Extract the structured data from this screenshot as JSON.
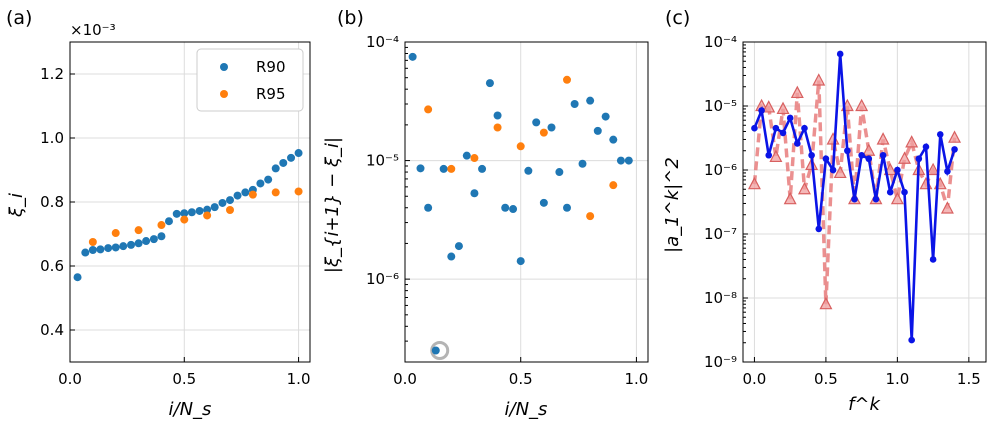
{
  "colors": {
    "r90": "#1f77b4",
    "r95": "#ff7f0e",
    "blue_line": "#0a14e6",
    "red_line": "#e87c7c",
    "highlight": "#b4b4b4"
  },
  "chart_data": [
    {
      "panel": "(a)",
      "type": "scatter",
      "title": "",
      "xlabel": "i/N_s",
      "ylabel": "ξ_i",
      "offset_text": "×10⁻³",
      "xlim": [
        0,
        1.05
      ],
      "ylim": [
        0.3,
        1.3
      ],
      "xticks": [
        0.0,
        0.5,
        1.0
      ],
      "xtick_labels": [
        "0.0",
        "0.5",
        "1.0"
      ],
      "yticks": [
        0.4,
        0.6,
        0.8,
        1.0,
        1.2
      ],
      "ytick_labels": [
        "0.4",
        "0.6",
        "0.8",
        "1.0",
        "1.2"
      ],
      "grid": true,
      "legend": "top-right",
      "series": [
        {
          "name": "R90",
          "x": [
            0.033,
            0.067,
            0.1,
            0.133,
            0.167,
            0.2,
            0.233,
            0.267,
            0.3,
            0.333,
            0.367,
            0.4,
            0.433,
            0.467,
            0.5,
            0.533,
            0.567,
            0.6,
            0.633,
            0.667,
            0.7,
            0.733,
            0.767,
            0.8,
            0.833,
            0.867,
            0.9,
            0.933,
            0.967,
            1.0
          ],
          "y": [
            0.565,
            0.642,
            0.65,
            0.652,
            0.656,
            0.658,
            0.662,
            0.666,
            0.671,
            0.678,
            0.684,
            0.693,
            0.74,
            0.763,
            0.765,
            0.768,
            0.772,
            0.776,
            0.784,
            0.797,
            0.806,
            0.82,
            0.83,
            0.838,
            0.858,
            0.87,
            0.905,
            0.922,
            0.938,
            0.953
          ]
        },
        {
          "name": "R95",
          "x": [
            0.1,
            0.2,
            0.3,
            0.4,
            0.5,
            0.6,
            0.7,
            0.8,
            0.9,
            1.0
          ],
          "y": [
            0.675,
            0.703,
            0.712,
            0.728,
            0.745,
            0.758,
            0.775,
            0.823,
            0.83,
            0.833
          ]
        }
      ]
    },
    {
      "panel": "(b)",
      "type": "scatter",
      "title": "",
      "xlabel": "i/N_s",
      "ylabel": "|ξ_{i+1} − ξ_i|",
      "yscale": "log",
      "xlim": [
        0,
        1.05
      ],
      "ylim": [
        2e-07,
        0.0001
      ],
      "xticks": [
        0.0,
        0.5,
        1.0
      ],
      "xtick_labels": [
        "0.0",
        "0.5",
        "1.0"
      ],
      "ytick_labels": [
        "10⁻⁶",
        "10⁻⁵",
        "10⁻⁴"
      ],
      "grid": true,
      "series": [
        {
          "name": "R90",
          "x": [
            0.033,
            0.067,
            0.1,
            0.133,
            0.167,
            0.2,
            0.233,
            0.267,
            0.3,
            0.333,
            0.367,
            0.4,
            0.433,
            0.467,
            0.5,
            0.533,
            0.567,
            0.6,
            0.633,
            0.667,
            0.7,
            0.733,
            0.767,
            0.8,
            0.833,
            0.867,
            0.9,
            0.933,
            0.967
          ],
          "y": [
            7.5e-05,
            8.6e-06,
            4e-06,
            2.5e-07,
            8.5e-06,
            1.55e-06,
            1.9e-06,
            1.1e-05,
            5.3e-06,
            8.5e-06,
            4.5e-05,
            2.4e-05,
            4e-06,
            3.9e-06,
            1.42e-06,
            8.2e-06,
            2.1e-05,
            4.4e-06,
            1.9e-05,
            8e-06,
            4e-06,
            3e-05,
            9.4e-06,
            3.2e-05,
            1.78e-05,
            2.35e-05,
            1.5e-05,
            1e-05,
            1e-05
          ]
        },
        {
          "name": "R95",
          "x": [
            0.1,
            0.2,
            0.3,
            0.4,
            0.5,
            0.6,
            0.7,
            0.8,
            0.9
          ],
          "y": [
            2.7e-05,
            8.5e-06,
            1.05e-05,
            1.9e-05,
            1.32e-05,
            1.72e-05,
            4.8e-05,
            3.4e-06,
            6.2e-06
          ]
        }
      ],
      "highlight_point": {
        "x": 0.15,
        "y": 2.5e-07
      }
    },
    {
      "panel": "(c)",
      "type": "line",
      "title": "",
      "xlabel": "f^k",
      "ylabel": "|a_1^k|^2",
      "yscale": "log",
      "xlim": [
        -0.08,
        1.62
      ],
      "ylim": [
        1e-09,
        0.0001
      ],
      "xticks": [
        0.0,
        0.5,
        1.0,
        1.5
      ],
      "xtick_labels": [
        "0.0",
        "0.5",
        "1.0",
        "1.5"
      ],
      "ytick_labels": [
        "10⁻⁹",
        "10⁻⁸",
        "10⁻⁷",
        "10⁻⁶",
        "10⁻⁵",
        "10⁻⁴"
      ],
      "grid": true,
      "series": [
        {
          "name": "blue",
          "x": [
            0.0,
            0.05,
            0.1,
            0.15,
            0.2,
            0.25,
            0.3,
            0.35,
            0.4,
            0.45,
            0.5,
            0.55,
            0.6,
            0.65,
            0.7,
            0.75,
            0.8,
            0.85,
            0.9,
            0.95,
            1.0,
            1.05,
            1.1,
            1.15,
            1.2,
            1.25,
            1.3,
            1.35,
            1.4
          ],
          "y": [
            4.5e-06,
            8.5e-06,
            1.7e-06,
            4.5e-06,
            3.8e-06,
            6.5e-06,
            2.6e-06,
            4.5e-06,
            1.7e-06,
            1.2e-07,
            1.5e-06,
            1e-06,
            6.5e-05,
            2e-06,
            3.5e-07,
            1.7e-06,
            1.5e-06,
            3.5e-07,
            1.7e-06,
            4.5e-07,
            1e-06,
            4.5e-07,
            2.2e-09,
            1.5e-06,
            2.3e-06,
            4e-08,
            3.6e-06,
            9.5e-07,
            2.1e-06
          ]
        },
        {
          "name": "red",
          "x": [
            0.0,
            0.05,
            0.1,
            0.15,
            0.2,
            0.25,
            0.3,
            0.35,
            0.4,
            0.45,
            0.5,
            0.55,
            0.6,
            0.65,
            0.7,
            0.75,
            0.8,
            0.85,
            0.9,
            0.95,
            1.0,
            1.05,
            1.1,
            1.15,
            1.2,
            1.25,
            1.3,
            1.35,
            1.4
          ],
          "y": [
            6e-07,
            1e-05,
            9.5e-06,
            1.6e-06,
            9e-06,
            3.5e-07,
            1.6e-05,
            5e-07,
            1.2e-06,
            2.5e-05,
            8e-09,
            3e-06,
            9e-07,
            1e-05,
            3.5e-07,
            1e-05,
            2e-06,
            3.5e-07,
            3e-06,
            1e-06,
            3.5e-07,
            1.5e-06,
            2.7e-06,
            1e-06,
            6e-07,
            1e-06,
            6e-07,
            2.5e-07,
            3.2e-06
          ]
        }
      ]
    }
  ]
}
